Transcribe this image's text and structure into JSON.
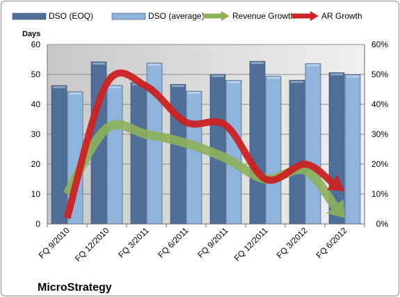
{
  "chart_data": {
    "type": "bar",
    "title": "MicroStrategy",
    "ylabel": "Days",
    "ylim": [
      0,
      60
    ],
    "y2lim": [
      0,
      0.6
    ],
    "y_ticks": [
      "0",
      "10",
      "20",
      "30",
      "40",
      "50",
      "60"
    ],
    "y2_ticks": [
      "0%",
      "10%",
      "20%",
      "30%",
      "40%",
      "50%",
      "60%"
    ],
    "categories": [
      "FQ 9/2010",
      "FQ 12/2010",
      "FQ 3/2011",
      "FQ 6/2011",
      "FQ 9/2011",
      "FQ 12/2011",
      "FQ 3/2012",
      "FQ 6/2012"
    ],
    "legend_position": "top",
    "grid": true,
    "series": [
      {
        "name": "DSO (EOQ)",
        "kind": "bar",
        "axis": "left",
        "color": "#4f6f99",
        "values": [
          46.3,
          54.2,
          47.3,
          46.7,
          50.0,
          54.4,
          48.1,
          50.6
        ]
      },
      {
        "name": "DSO (average)",
        "kind": "bar",
        "axis": "left",
        "color": "#8fb4dc",
        "values": [
          44.2,
          46.3,
          53.8,
          44.4,
          48.0,
          49.4,
          53.6,
          49.9
        ]
      },
      {
        "name": "Revenue Growth",
        "kind": "arrow-line",
        "axis": "right",
        "color": "#8db05a",
        "values": [
          0.1,
          0.32,
          0.3,
          0.27,
          0.22,
          0.15,
          0.18,
          0.02
        ]
      },
      {
        "name": "AR Growth",
        "kind": "arrow-line",
        "axis": "right",
        "color": "#cc2222",
        "values": [
          0.02,
          0.47,
          0.46,
          0.34,
          0.33,
          0.15,
          0.2,
          0.11
        ]
      }
    ]
  }
}
